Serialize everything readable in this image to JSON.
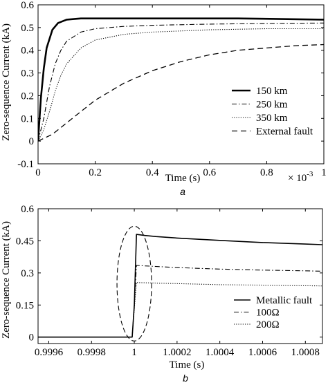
{
  "chart_data": [
    {
      "type": "line",
      "panel_label": "a",
      "xlabel": "Time (s)",
      "ylabel": "Zero-sequence Current (kA)",
      "x_multiplier_label": "× 10",
      "x_multiplier_exp": "-3",
      "xlim": [
        0,
        1
      ],
      "ylim": [
        -0.1,
        0.6
      ],
      "x_ticks": [
        0,
        0.2,
        0.4,
        0.6,
        0.8,
        1
      ],
      "x_tick_labels": [
        "0",
        "0.2",
        "0.4",
        "0.6",
        "0.8",
        "1"
      ],
      "y_ticks": [
        -0.1,
        0,
        0.1,
        0.2,
        0.3,
        0.4,
        0.5,
        0.6
      ],
      "y_tick_labels": [
        "-0.1",
        "0",
        "0.1",
        "0.2",
        "0.3",
        "0.4",
        "0.5",
        "0.6"
      ],
      "legend_position": "bottom-right",
      "series": [
        {
          "name": "150 km",
          "style": "solid-thick",
          "x": [
            0,
            0.01,
            0.02,
            0.03,
            0.05,
            0.07,
            0.1,
            0.15,
            0.2,
            0.3,
            0.5,
            0.7,
            1.0
          ],
          "y": [
            0,
            0.19,
            0.32,
            0.41,
            0.49,
            0.52,
            0.535,
            0.54,
            0.54,
            0.54,
            0.54,
            0.54,
            0.535
          ]
        },
        {
          "name": "250 km",
          "style": "dashdot",
          "x": [
            0,
            0.02,
            0.04,
            0.06,
            0.08,
            0.1,
            0.15,
            0.2,
            0.3,
            0.4,
            0.6,
            0.8,
            1.0
          ],
          "y": [
            0,
            0.1,
            0.24,
            0.34,
            0.4,
            0.44,
            0.48,
            0.495,
            0.505,
            0.51,
            0.515,
            0.518,
            0.52
          ]
        },
        {
          "name": "350 km",
          "style": "dotted",
          "x": [
            0,
            0.02,
            0.04,
            0.06,
            0.08,
            0.1,
            0.15,
            0.2,
            0.3,
            0.4,
            0.6,
            0.8,
            1.0
          ],
          "y": [
            0,
            0.05,
            0.13,
            0.22,
            0.29,
            0.34,
            0.41,
            0.445,
            0.47,
            0.48,
            0.49,
            0.495,
            0.495
          ]
        },
        {
          "name": "External fault",
          "style": "dashed",
          "x": [
            0,
            0.05,
            0.1,
            0.15,
            0.2,
            0.3,
            0.4,
            0.5,
            0.6,
            0.7,
            0.8,
            0.9,
            1.0
          ],
          "y": [
            0,
            0.03,
            0.08,
            0.13,
            0.18,
            0.255,
            0.31,
            0.35,
            0.38,
            0.4,
            0.41,
            0.42,
            0.425
          ]
        }
      ]
    },
    {
      "type": "line",
      "panel_label": "b",
      "xlabel": "Time (s)",
      "ylabel": "Zero-sequence Current (kA)",
      "xlim": [
        0.99955,
        1.00088
      ],
      "ylim": [
        -0.03,
        0.6
      ],
      "x_ticks": [
        0.9996,
        0.9998,
        1,
        1.0002,
        1.0004,
        1.0006,
        1.0008
      ],
      "x_tick_labels": [
        "0.9996",
        "0.9998",
        "1",
        "1.0002",
        "1.0004",
        "1.0006",
        "1.0008"
      ],
      "y_ticks": [
        0,
        0.15,
        0.3,
        0.45,
        0.6
      ],
      "y_tick_labels": [
        "0",
        "0.15",
        "0.3",
        "0.45",
        "0.6"
      ],
      "legend_position": "bottom-right",
      "series": [
        {
          "name": "Metallic fault",
          "style": "solid",
          "x": [
            0.99955,
            0.99999,
            1.0,
            1.00001,
            1.00005,
            1.0001,
            1.0002,
            1.0004,
            1.0006,
            1.0008,
            1.00088
          ],
          "y": [
            0,
            0,
            0.15,
            0.48,
            0.475,
            0.47,
            0.463,
            0.452,
            0.442,
            0.435,
            0.432
          ]
        },
        {
          "name": "100Ω",
          "style": "dashdot",
          "x": [
            0.99999,
            1.0,
            1.00001,
            1.0002,
            1.0004,
            1.0006,
            1.0008,
            1.00088
          ],
          "y": [
            0,
            0.15,
            0.335,
            0.325,
            0.318,
            0.313,
            0.31,
            0.308
          ]
        },
        {
          "name": "200Ω",
          "style": "dotted",
          "x": [
            0.99999,
            1.0,
            1.00001,
            1.0002,
            1.0004,
            1.0006,
            1.0008,
            1.00088
          ],
          "y": [
            0,
            0.13,
            0.255,
            0.25,
            0.245,
            0.243,
            0.24,
            0.239
          ]
        }
      ],
      "annotation": "dashed ellipse around fault inception at t = 1 s"
    }
  ]
}
